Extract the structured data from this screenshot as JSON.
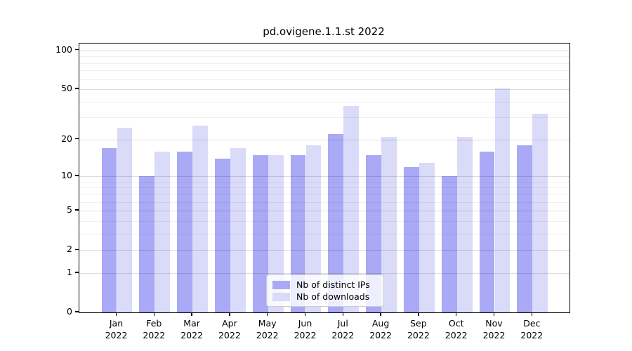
{
  "chart_data": {
    "type": "bar",
    "title": "pd.ovigene.1.1.st 2022",
    "year": "2022",
    "categories": [
      "Jan",
      "Feb",
      "Mar",
      "Apr",
      "May",
      "Jun",
      "Jul",
      "Aug",
      "Sep",
      "Oct",
      "Nov",
      "Dec"
    ],
    "series": [
      {
        "name": "Nb of distinct IPs",
        "color": "#a9a9f6",
        "values": [
          17,
          10,
          16,
          14,
          15,
          15,
          22,
          15,
          12,
          10,
          16,
          18
        ]
      },
      {
        "name": "Nb of downloads",
        "color": "#dadaf9",
        "values": [
          25,
          16,
          26,
          17,
          15,
          18,
          37,
          21,
          13,
          21,
          51,
          32
        ]
      }
    ],
    "y_axis": {
      "scale": "log1p",
      "ticks": [
        0,
        1,
        2,
        5,
        10,
        20,
        50,
        100
      ],
      "minor_gridlines": [
        3,
        4,
        6,
        7,
        8,
        9,
        30,
        40,
        60,
        70,
        80,
        90
      ],
      "ylim": [
        0,
        113
      ]
    },
    "legend": {
      "position": "bottom-center",
      "entries": [
        "Nb of distinct IPs",
        "Nb of downloads"
      ]
    },
    "grid": "on"
  }
}
